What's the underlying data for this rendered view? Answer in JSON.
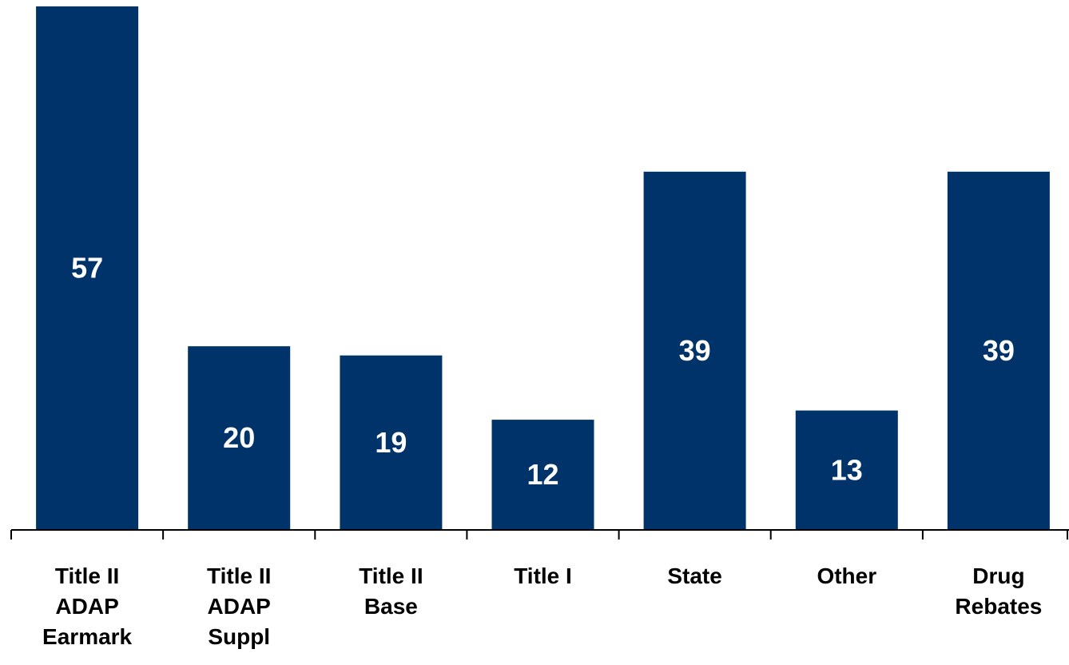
{
  "chart_data": {
    "type": "bar",
    "categories": [
      "Title II ADAP Earmark",
      "Title II ADAP Suppl",
      "Title II Base",
      "Title I",
      "State",
      "Other",
      "Drug Rebates"
    ],
    "category_lines": [
      [
        "Title II",
        "ADAP",
        "Earmark"
      ],
      [
        "Title II",
        "ADAP",
        "Suppl"
      ],
      [
        "Title II",
        "Base"
      ],
      [
        "Title I"
      ],
      [
        "State"
      ],
      [
        "Other"
      ],
      [
        "Drug",
        "Rebates"
      ]
    ],
    "values": [
      57,
      20,
      19,
      12,
      39,
      13,
      39
    ],
    "value_labels": [
      "57",
      "20",
      "19",
      "12",
      "39",
      "13",
      "39"
    ],
    "title": "",
    "xlabel": "",
    "ylabel": "",
    "ylim": [
      0,
      57
    ],
    "grid": false,
    "legend": "none",
    "bar_color": "#00336A",
    "label_color": "#FFFFFF",
    "axis_color": "#000000"
  }
}
